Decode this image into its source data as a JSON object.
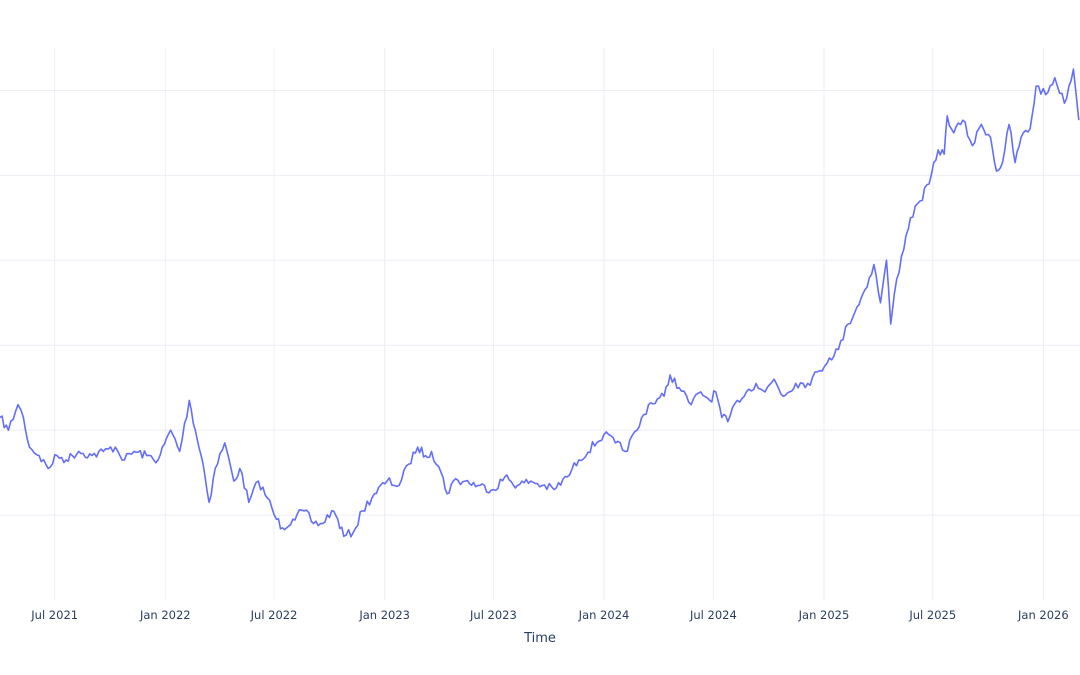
{
  "chart_data": {
    "type": "line",
    "title": "",
    "xlabel": "Time",
    "ylabel": "",
    "x_range": [
      "2021-04-01",
      "2026-03-03"
    ],
    "y_range": [
      0,
      130
    ],
    "x_ticks": [
      {
        "date": "2021-07-01",
        "label": "Jul 2021"
      },
      {
        "date": "2022-01-01",
        "label": "Jan 2022"
      },
      {
        "date": "2022-07-01",
        "label": "Jul 2022"
      },
      {
        "date": "2023-01-01",
        "label": "Jan 2023"
      },
      {
        "date": "2023-07-01",
        "label": "Jul 2023"
      },
      {
        "date": "2024-01-01",
        "label": "Jan 2024"
      },
      {
        "date": "2024-07-01",
        "label": "Jul 2024"
      },
      {
        "date": "2025-01-01",
        "label": "Jan 2025"
      },
      {
        "date": "2025-07-01",
        "label": "Jul 2025"
      },
      {
        "date": "2026-01-01",
        "label": "Jan 2026"
      }
    ],
    "y_gridlines": [
      20,
      40,
      60,
      80,
      100,
      120
    ],
    "grid": true,
    "legend": "none",
    "colors": {
      "series": "#636efa",
      "grid": "#ebeef5",
      "text": "#2a3f5f"
    },
    "series": [
      {
        "points": [
          [
            "2021-04-01",
            43
          ],
          [
            "2021-04-15",
            40
          ],
          [
            "2021-05-01",
            46
          ],
          [
            "2021-05-10",
            43
          ],
          [
            "2021-05-20",
            36
          ],
          [
            "2021-06-05",
            34
          ],
          [
            "2021-06-20",
            31
          ],
          [
            "2021-07-05",
            34
          ],
          [
            "2021-07-20",
            33
          ],
          [
            "2021-08-10",
            35
          ],
          [
            "2021-09-01",
            34
          ],
          [
            "2021-09-20",
            35
          ],
          [
            "2021-10-10",
            36
          ],
          [
            "2021-10-25",
            33
          ],
          [
            "2021-11-10",
            35
          ],
          [
            "2021-12-01",
            34
          ],
          [
            "2021-12-20",
            33
          ],
          [
            "2022-01-10",
            40
          ],
          [
            "2022-01-25",
            35
          ],
          [
            "2022-02-10",
            47
          ],
          [
            "2022-02-20",
            40
          ],
          [
            "2022-03-05",
            32
          ],
          [
            "2022-03-15",
            23
          ],
          [
            "2022-03-25",
            31
          ],
          [
            "2022-04-10",
            37
          ],
          [
            "2022-04-25",
            28
          ],
          [
            "2022-05-05",
            31
          ],
          [
            "2022-05-20",
            23
          ],
          [
            "2022-06-05",
            28
          ],
          [
            "2022-06-20",
            24
          ],
          [
            "2022-07-05",
            19
          ],
          [
            "2022-07-15",
            17
          ],
          [
            "2022-08-01",
            19
          ],
          [
            "2022-08-20",
            21
          ],
          [
            "2022-09-05",
            18
          ],
          [
            "2022-09-20",
            18
          ],
          [
            "2022-10-05",
            21
          ],
          [
            "2022-10-15",
            19
          ],
          [
            "2022-10-25",
            15
          ],
          [
            "2022-11-10",
            16
          ],
          [
            "2022-11-25",
            21
          ],
          [
            "2022-12-15",
            25
          ],
          [
            "2023-01-05",
            28
          ],
          [
            "2023-01-25",
            27
          ],
          [
            "2023-02-10",
            32
          ],
          [
            "2023-02-25",
            36
          ],
          [
            "2023-03-10",
            34
          ],
          [
            "2023-03-20",
            35
          ],
          [
            "2023-04-05",
            30
          ],
          [
            "2023-04-15",
            25
          ],
          [
            "2023-04-25",
            28
          ],
          [
            "2023-05-15",
            28
          ],
          [
            "2023-06-05",
            27
          ],
          [
            "2023-07-01",
            26
          ],
          [
            "2023-07-20",
            29
          ],
          [
            "2023-08-10",
            27
          ],
          [
            "2023-09-01",
            28
          ],
          [
            "2023-09-20",
            27
          ],
          [
            "2023-10-10",
            26
          ],
          [
            "2023-11-01",
            29
          ],
          [
            "2023-11-20",
            33
          ],
          [
            "2024-01-01",
            39
          ],
          [
            "2024-01-20",
            37
          ],
          [
            "2024-02-05",
            35
          ],
          [
            "2024-02-25",
            40
          ],
          [
            "2024-03-15",
            46
          ],
          [
            "2024-04-10",
            48
          ],
          [
            "2024-04-20",
            53
          ],
          [
            "2024-05-05",
            50
          ],
          [
            "2024-05-25",
            46
          ],
          [
            "2024-06-10",
            49
          ],
          [
            "2024-06-25",
            47
          ],
          [
            "2024-07-05",
            49
          ],
          [
            "2024-07-15",
            43
          ],
          [
            "2024-07-25",
            42
          ],
          [
            "2024-08-10",
            47
          ],
          [
            "2024-08-25",
            49
          ],
          [
            "2024-09-10",
            51
          ],
          [
            "2024-09-25",
            49
          ],
          [
            "2024-10-10",
            52
          ],
          [
            "2024-10-25",
            48
          ],
          [
            "2024-11-15",
            51
          ],
          [
            "2024-12-05",
            51
          ],
          [
            "2024-12-25",
            54
          ],
          [
            "2025-01-10",
            57
          ],
          [
            "2025-01-25",
            59
          ],
          [
            "2025-02-10",
            65
          ],
          [
            "2025-02-25",
            69
          ],
          [
            "2025-03-10",
            73
          ],
          [
            "2025-03-25",
            79
          ],
          [
            "2025-04-05",
            70
          ],
          [
            "2025-04-15",
            80
          ],
          [
            "2025-04-22",
            65
          ],
          [
            "2025-04-28",
            72
          ],
          [
            "2025-05-10",
            81
          ],
          [
            "2025-05-25",
            90
          ],
          [
            "2025-06-10",
            94
          ],
          [
            "2025-06-25",
            98
          ],
          [
            "2025-07-10",
            106
          ],
          [
            "2025-07-20",
            105
          ],
          [
            "2025-07-25",
            114
          ],
          [
            "2025-08-05",
            110
          ],
          [
            "2025-08-20",
            113
          ],
          [
            "2025-09-05",
            107
          ],
          [
            "2025-09-20",
            112
          ],
          [
            "2025-10-05",
            109
          ],
          [
            "2025-10-15",
            101
          ],
          [
            "2025-10-25",
            103
          ],
          [
            "2025-11-05",
            112
          ],
          [
            "2025-11-15",
            103
          ],
          [
            "2025-11-25",
            109
          ],
          [
            "2025-12-10",
            111
          ],
          [
            "2025-12-20",
            121
          ],
          [
            "2026-01-05",
            119
          ],
          [
            "2026-01-20",
            123
          ],
          [
            "2026-02-05",
            117
          ],
          [
            "2026-02-20",
            125
          ],
          [
            "2026-03-01",
            113
          ]
        ]
      }
    ]
  }
}
